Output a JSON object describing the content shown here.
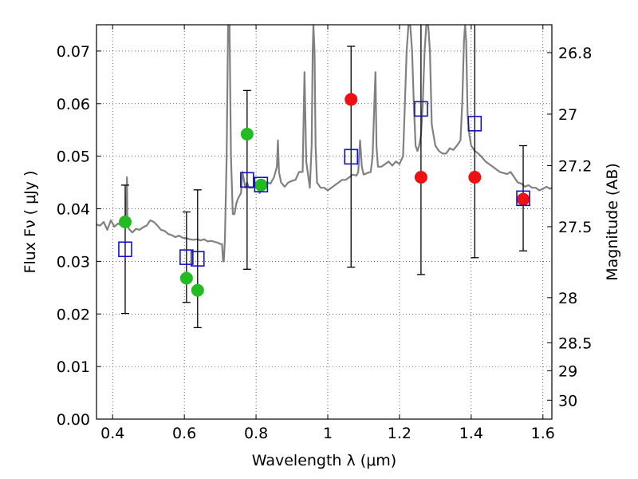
{
  "chart_data": {
    "type": "scatter",
    "xlabel": "Wavelength  λ (μm)",
    "ylabel": "Flux  Fν  ( μJy )",
    "y2label": "Magnitude (AB)",
    "xlim": [
      0.355,
      1.625
    ],
    "ylim": [
      0.0,
      0.075
    ],
    "grid": true,
    "x_ticks": [
      0.4,
      0.6,
      0.8,
      1.0,
      1.2,
      1.4,
      1.6
    ],
    "x_tick_labels": [
      "0.4",
      "0.6",
      "0.8",
      "1",
      "1.2",
      "1.4",
      "1.6"
    ],
    "y_ticks": [
      0.0,
      0.01,
      0.02,
      0.03,
      0.04,
      0.05,
      0.06,
      0.07
    ],
    "y_tick_labels": [
      "0.00",
      "0.01",
      "0.02",
      "0.03",
      "0.04",
      "0.05",
      "0.06",
      "0.07"
    ],
    "magnitude_ticks": [
      {
        "label": "26.8",
        "flux": 0.0697
      },
      {
        "label": "27",
        "flux": 0.058
      },
      {
        "label": "27.2",
        "flux": 0.0482
      },
      {
        "label": "27.5",
        "flux": 0.0366
      },
      {
        "label": "28",
        "flux": 0.0231
      },
      {
        "label": "28.5",
        "flux": 0.0145
      },
      {
        "label": "29",
        "flux": 0.0092
      },
      {
        "label": "30",
        "flux": 0.0036
      }
    ],
    "series": [
      {
        "marker": "circle",
        "color": "#22bb22",
        "points": [
          {
            "x": 0.435,
            "y": 0.0375,
            "err": 0.0
          },
          {
            "x": 0.606,
            "y": 0.0268,
            "err": 0.0
          },
          {
            "x": 0.637,
            "y": 0.0245,
            "err": 0.0
          },
          {
            "x": 0.775,
            "y": 0.0542,
            "err": 0.0
          },
          {
            "x": 0.814,
            "y": 0.0445,
            "err": 0.0
          }
        ]
      },
      {
        "marker": "circle",
        "color": "#ee1111",
        "points": [
          {
            "x": 1.065,
            "y": 0.0608,
            "err": 0.0
          },
          {
            "x": 1.26,
            "y": 0.046,
            "err": 0.0
          },
          {
            "x": 1.41,
            "y": 0.046,
            "err": 0.0
          },
          {
            "x": 1.545,
            "y": 0.0418,
            "err": 0.0
          }
        ]
      },
      {
        "marker": "open-square",
        "color": "#1111cc",
        "points": [
          {
            "x": 0.435,
            "y": 0.0323,
            "err": 0.0122
          },
          {
            "x": 0.606,
            "y": 0.0308,
            "err": 0.0086
          },
          {
            "x": 0.637,
            "y": 0.0305,
            "err": 0.0131
          },
          {
            "x": 0.775,
            "y": 0.0455,
            "err": 0.017
          },
          {
            "x": 0.814,
            "y": 0.0446,
            "err": 0.0
          },
          {
            "x": 1.065,
            "y": 0.0499,
            "err": 0.021
          },
          {
            "x": 1.26,
            "y": 0.059,
            "err": 0.0315
          },
          {
            "x": 1.41,
            "y": 0.0562,
            "err": 0.0255
          },
          {
            "x": 1.545,
            "y": 0.042,
            "err": 0.01
          }
        ]
      }
    ],
    "model_spectrum": {
      "color": "#808080",
      "x": [
        0.355,
        0.365,
        0.375,
        0.385,
        0.395,
        0.405,
        0.415,
        0.425,
        0.433,
        0.438,
        0.44,
        0.441,
        0.445,
        0.455,
        0.465,
        0.475,
        0.485,
        0.495,
        0.505,
        0.515,
        0.525,
        0.535,
        0.545,
        0.555,
        0.565,
        0.575,
        0.585,
        0.595,
        0.605,
        0.615,
        0.625,
        0.635,
        0.645,
        0.655,
        0.665,
        0.675,
        0.685,
        0.695,
        0.7,
        0.705,
        0.708,
        0.71,
        0.713,
        0.718,
        0.722,
        0.726,
        0.73,
        0.735,
        0.74,
        0.745,
        0.75,
        0.758,
        0.762,
        0.765,
        0.77,
        0.775,
        0.78,
        0.79,
        0.8,
        0.81,
        0.82,
        0.83,
        0.84,
        0.85,
        0.858,
        0.861,
        0.864,
        0.87,
        0.88,
        0.89,
        0.9,
        0.91,
        0.92,
        0.93,
        0.935,
        0.94,
        0.95,
        0.955,
        0.958,
        0.96,
        0.963,
        0.966,
        0.97,
        0.975,
        0.98,
        0.99,
        1.0,
        1.01,
        1.02,
        1.03,
        1.04,
        1.05,
        1.06,
        1.07,
        1.08,
        1.085,
        1.09,
        1.095,
        1.1,
        1.11,
        1.12,
        1.125,
        1.13,
        1.133,
        1.136,
        1.14,
        1.15,
        1.16,
        1.17,
        1.18,
        1.19,
        1.2,
        1.21,
        1.215,
        1.22,
        1.225,
        1.23,
        1.235,
        1.24,
        1.245,
        1.25,
        1.255,
        1.26,
        1.265,
        1.27,
        1.275,
        1.28,
        1.285,
        1.29,
        1.3,
        1.31,
        1.32,
        1.33,
        1.34,
        1.35,
        1.36,
        1.37,
        1.375,
        1.38,
        1.383,
        1.386,
        1.39,
        1.395,
        1.4,
        1.405,
        1.41,
        1.42,
        1.43,
        1.44,
        1.45,
        1.46,
        1.47,
        1.48,
        1.49,
        1.5,
        1.51,
        1.52,
        1.53,
        1.54,
        1.55,
        1.56,
        1.57,
        1.58,
        1.59,
        1.6,
        1.61,
        1.62,
        1.625
      ],
      "y": [
        0.037,
        0.0368,
        0.0375,
        0.036,
        0.0378,
        0.0366,
        0.0372,
        0.0368,
        0.038,
        0.0395,
        0.046,
        0.038,
        0.0362,
        0.0355,
        0.0362,
        0.036,
        0.0365,
        0.0368,
        0.0378,
        0.0375,
        0.0368,
        0.036,
        0.0358,
        0.0352,
        0.035,
        0.0346,
        0.0349,
        0.0345,
        0.0344,
        0.0342,
        0.0341,
        0.0342,
        0.034,
        0.0342,
        0.0338,
        0.0339,
        0.0337,
        0.0335,
        0.0333,
        0.0333,
        0.03,
        0.03,
        0.034,
        0.05,
        0.075,
        0.075,
        0.05,
        0.039,
        0.039,
        0.041,
        0.042,
        0.043,
        0.047,
        0.046,
        0.044,
        0.045,
        0.044,
        0.044,
        0.0445,
        0.043,
        0.0445,
        0.045,
        0.0448,
        0.046,
        0.048,
        0.053,
        0.047,
        0.045,
        0.0442,
        0.045,
        0.0453,
        0.0455,
        0.047,
        0.047,
        0.066,
        0.049,
        0.044,
        0.052,
        0.07,
        0.075,
        0.07,
        0.052,
        0.045,
        0.0445,
        0.044,
        0.044,
        0.0435,
        0.044,
        0.0445,
        0.045,
        0.0455,
        0.0455,
        0.046,
        0.0465,
        0.0463,
        0.047,
        0.053,
        0.048,
        0.0465,
        0.0468,
        0.047,
        0.05,
        0.06,
        0.066,
        0.052,
        0.048,
        0.048,
        0.0485,
        0.049,
        0.0482,
        0.049,
        0.0485,
        0.05,
        0.06,
        0.07,
        0.075,
        0.075,
        0.07,
        0.06,
        0.052,
        0.051,
        0.052,
        0.054,
        0.06,
        0.07,
        0.075,
        0.075,
        0.07,
        0.056,
        0.052,
        0.051,
        0.0505,
        0.0505,
        0.0515,
        0.0512,
        0.052,
        0.053,
        0.06,
        0.072,
        0.075,
        0.072,
        0.058,
        0.054,
        0.052,
        0.0515,
        0.051,
        0.0505,
        0.0498,
        0.049,
        0.0485,
        0.048,
        0.0475,
        0.047,
        0.0468,
        0.0466,
        0.047,
        0.046,
        0.045,
        0.0448,
        0.0442,
        0.0445,
        0.044,
        0.044,
        0.0435,
        0.0438,
        0.0442,
        0.0438,
        0.044
      ]
    }
  }
}
